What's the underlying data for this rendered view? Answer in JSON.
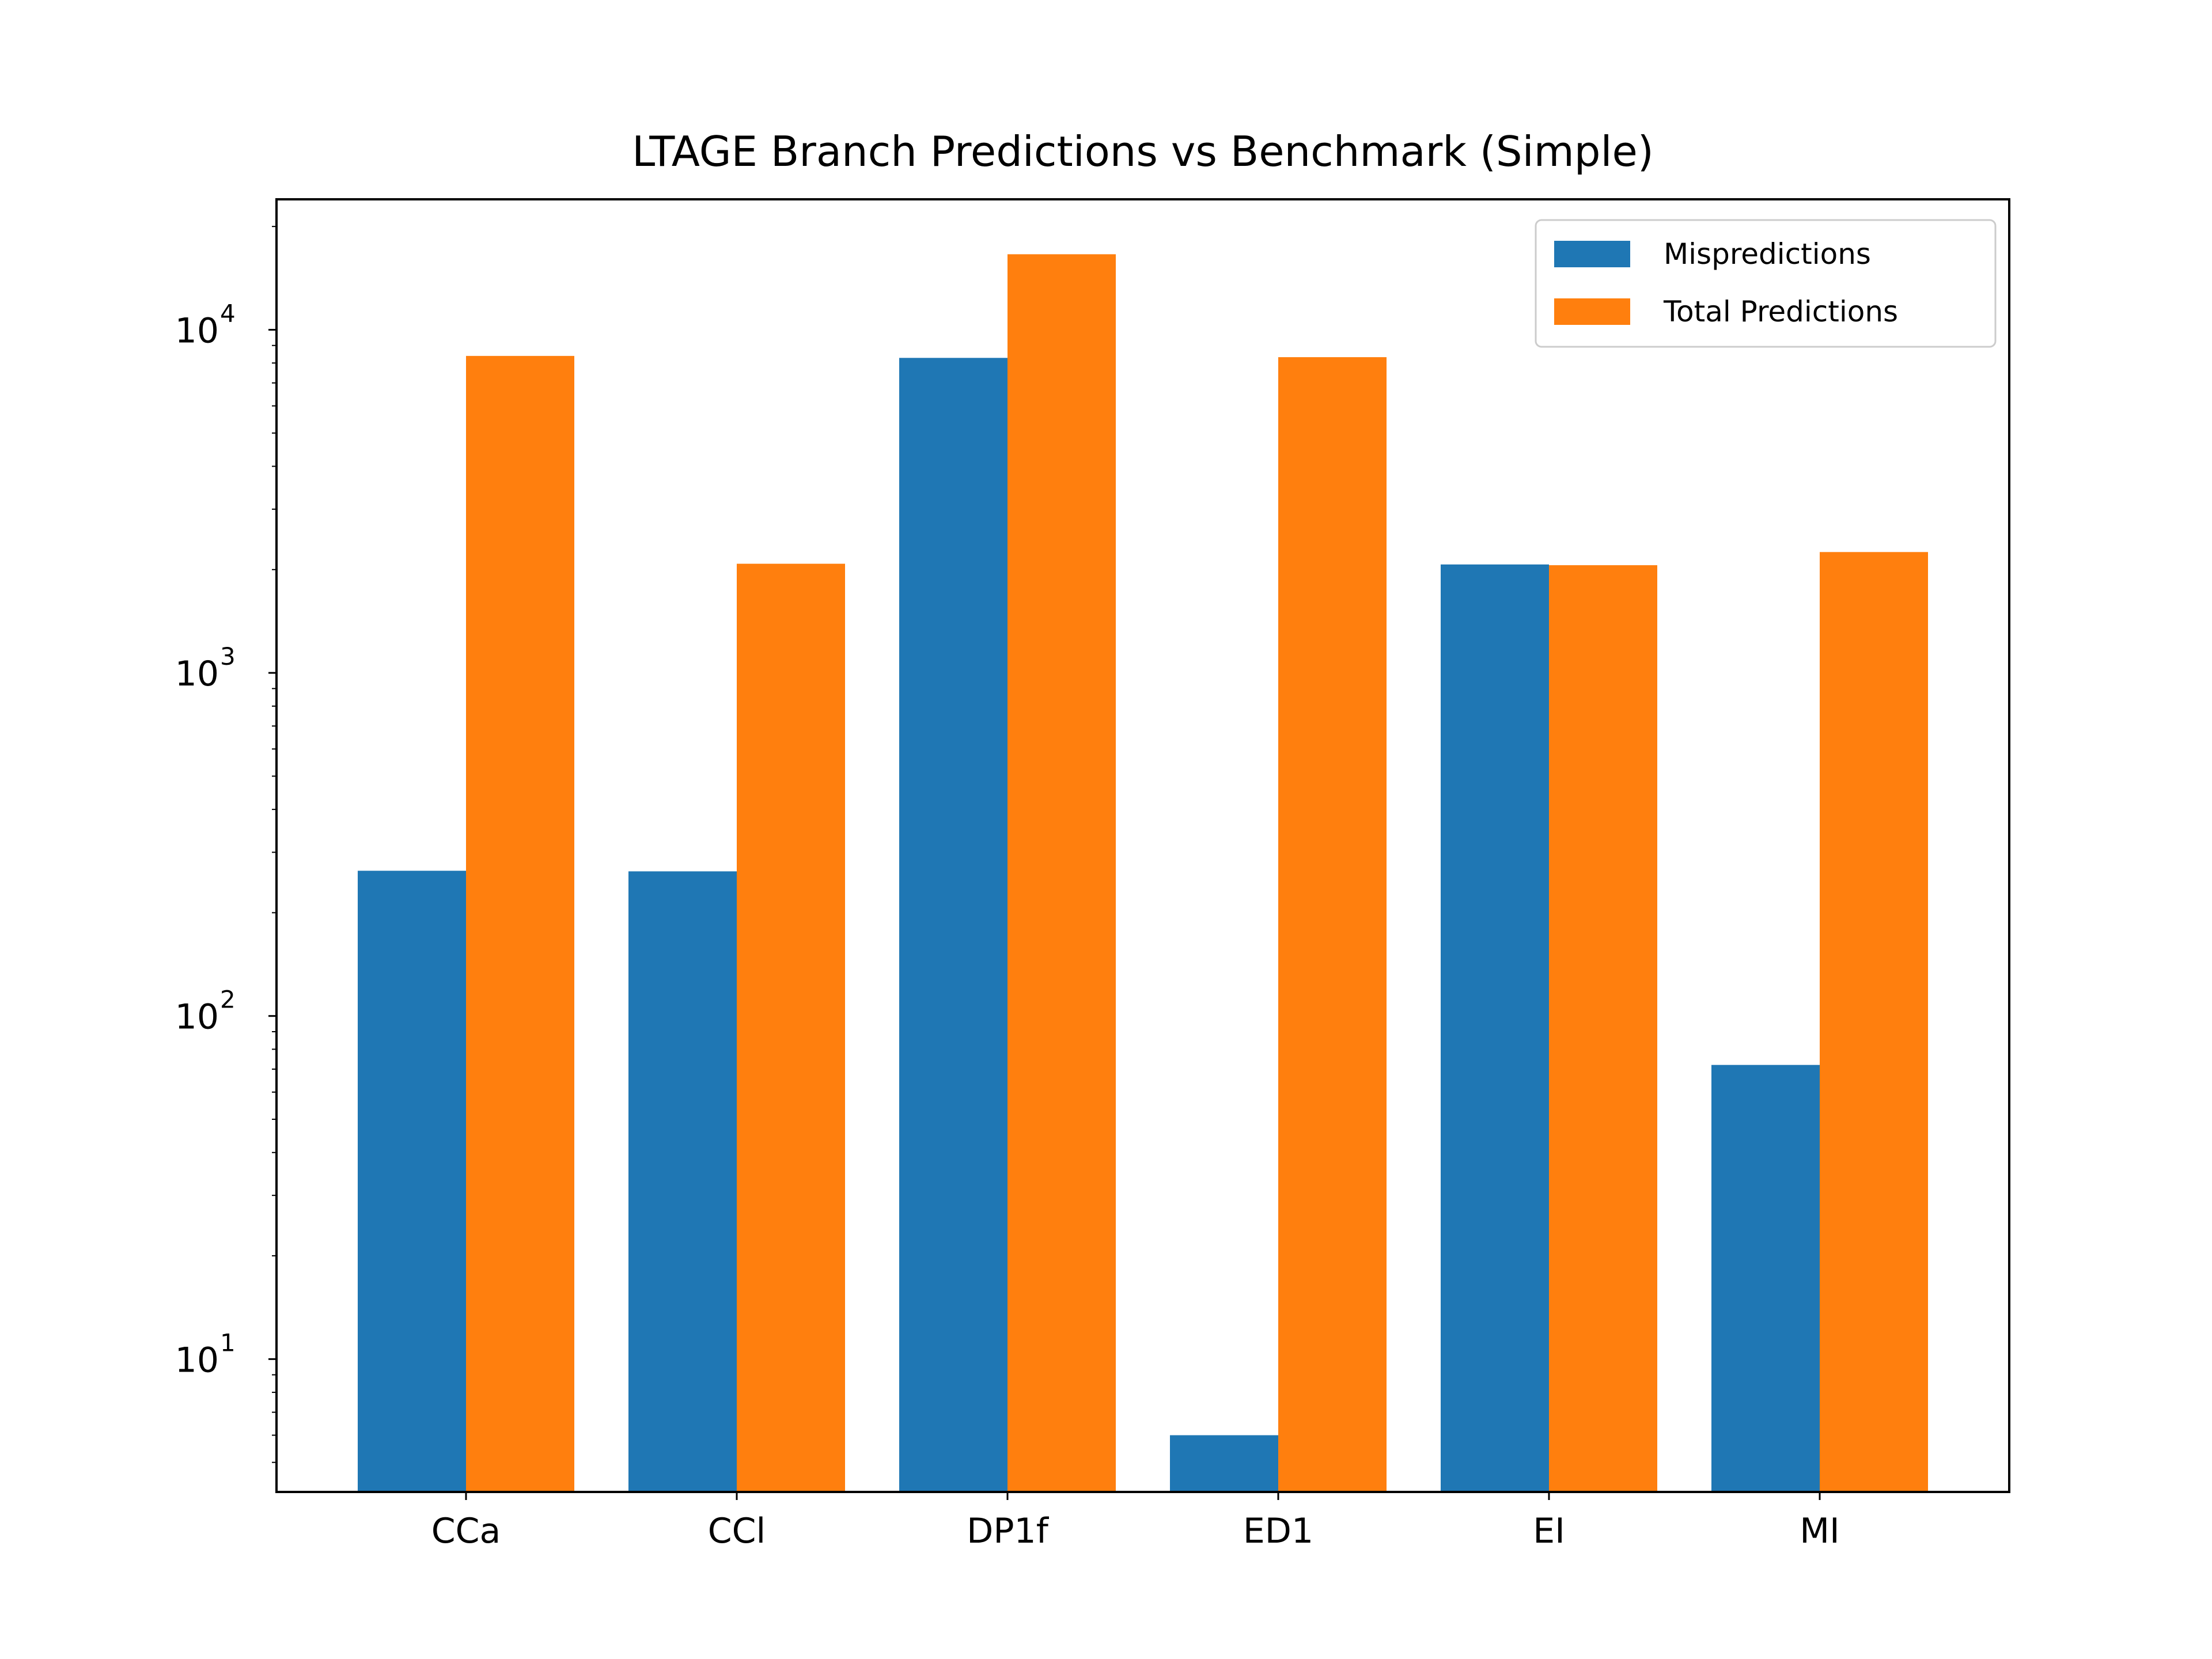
{
  "chart_data": {
    "type": "bar",
    "title": "LTAGE Branch Predictions vs Benchmark (Simple)",
    "xlabel": "",
    "ylabel": "",
    "yscale": "log",
    "ylim": [
      4.1,
      24000
    ],
    "categories": [
      "CCa",
      "CCl",
      "DP1f",
      "ED1",
      "EI",
      "MI"
    ],
    "series": [
      {
        "name": "Mispredictions",
        "color": "#1f77b4",
        "values": [
          265,
          264,
          8280,
          6,
          2070,
          72
        ]
      },
      {
        "name": "Total Predictions",
        "color": "#ff7f0e",
        "values": [
          8390,
          2080,
          16600,
          8320,
          2060,
          2250
        ]
      }
    ],
    "y_ticks": [
      {
        "base": "10",
        "exp": "1",
        "value": 10
      },
      {
        "base": "10",
        "exp": "2",
        "value": 100
      },
      {
        "base": "10",
        "exp": "3",
        "value": 1000
      },
      {
        "base": "10",
        "exp": "4",
        "value": 10000
      }
    ],
    "legend": {
      "position": "top-right"
    },
    "grid": false
  }
}
